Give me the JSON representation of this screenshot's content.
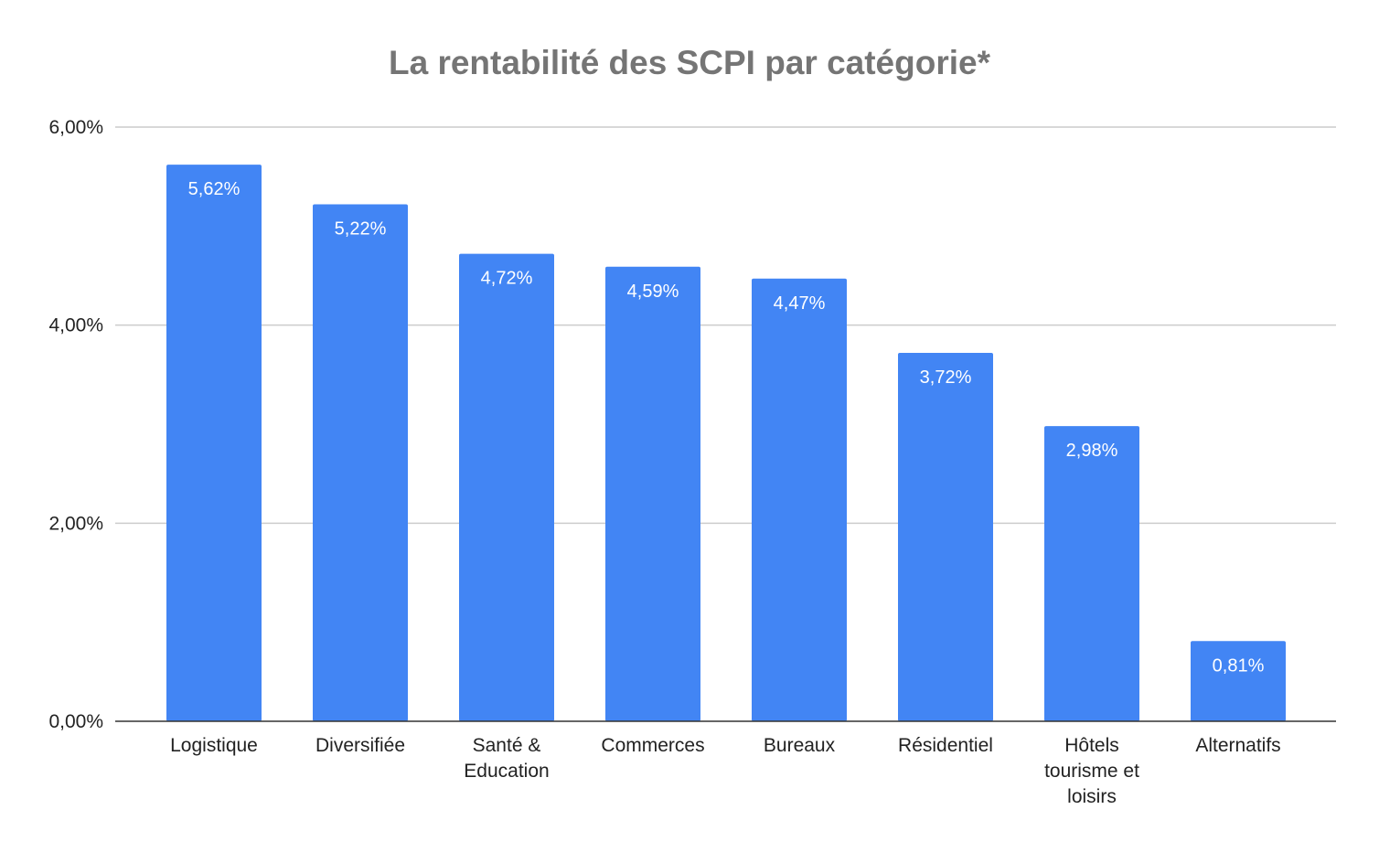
{
  "chart_data": {
    "type": "bar",
    "title": "La rentabilité des SCPI par catégorie*",
    "xlabel": "",
    "ylabel": "",
    "categories": [
      "Logistique",
      "Diversifiée",
      "Santé & Education",
      "Commerces",
      "Bureaux",
      "Résidentiel",
      "Hôtels tourisme et loisirs",
      "Alternatifs"
    ],
    "values": [
      5.62,
      5.22,
      4.72,
      4.59,
      4.47,
      3.72,
      2.98,
      0.81
    ],
    "data_labels": [
      "5,62%",
      "5,22%",
      "4,72%",
      "4,59%",
      "4,47%",
      "3,72%",
      "2,98%",
      "0,81%"
    ],
    "ylim": [
      0,
      6
    ],
    "yticks": [
      {
        "value": 0,
        "label": "0,00%"
      },
      {
        "value": 2,
        "label": "2,00%"
      },
      {
        "value": 4,
        "label": "4,00%"
      },
      {
        "value": 6,
        "label": "6,00%"
      }
    ],
    "grid": true,
    "legend": "none",
    "bar_color": "#4285f4",
    "grid_color": "#cccccc",
    "axis_color": "#333333"
  }
}
